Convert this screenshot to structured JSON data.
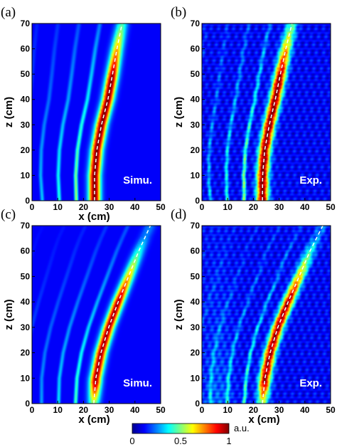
{
  "figure": {
    "panels": [
      {
        "label": "(a)",
        "tag": "Simu.",
        "source": "simulation",
        "order": "low",
        "beam": [
          [
            24.3,
            0
          ],
          [
            24.3,
            10
          ],
          [
            25.2,
            20
          ],
          [
            27,
            30
          ],
          [
            29.5,
            40
          ],
          [
            31.3,
            50
          ],
          [
            33,
            60
          ],
          [
            35,
            70
          ]
        ]
      },
      {
        "label": "(b)",
        "tag": "Exp.",
        "source": "experiment",
        "order": "low",
        "beam": [
          [
            23.5,
            0
          ],
          [
            23.6,
            10
          ],
          [
            24.4,
            20
          ],
          [
            26.2,
            30
          ],
          [
            28.5,
            40
          ],
          [
            30.5,
            50
          ],
          [
            32.6,
            60
          ],
          [
            35,
            70
          ]
        ]
      },
      {
        "label": "(c)",
        "tag": "Simu.",
        "source": "simulation",
        "order": "high",
        "beam": [
          [
            24,
            0
          ],
          [
            24.8,
            10
          ],
          [
            26.8,
            20
          ],
          [
            29.8,
            30
          ],
          [
            33.5,
            40
          ],
          [
            37.5,
            50
          ],
          [
            41.5,
            60
          ],
          [
            46,
            70
          ]
        ]
      },
      {
        "label": "(d)",
        "tag": "Exp.",
        "source": "experiment",
        "order": "high",
        "beam": [
          [
            23.5,
            0
          ],
          [
            24.5,
            10
          ],
          [
            26.5,
            20
          ],
          [
            29.5,
            30
          ],
          [
            33.5,
            40
          ],
          [
            37.8,
            50
          ],
          [
            42,
            60
          ],
          [
            47,
            70
          ]
        ]
      }
    ],
    "colorbar": {
      "ticks": [
        "0",
        "0.5",
        "1"
      ],
      "unit": "a.u.",
      "range": [
        0,
        1
      ]
    },
    "tag_color": "#ffffff",
    "trajectory_color": "#ffffff"
  },
  "chart_data": [
    {
      "type": "heatmap",
      "title": "(a)",
      "annotation": "Simu.",
      "xlabel": "x (cm)",
      "ylabel": "z (cm)",
      "xlim": [
        0,
        50
      ],
      "ylim": [
        0,
        70
      ],
      "xticks": [
        "0",
        "10",
        "20",
        "30",
        "40",
        "50"
      ],
      "yticks": [
        "0",
        "10",
        "20",
        "30",
        "40",
        "50",
        "60",
        "70"
      ],
      "colorbar_range": [
        0,
        1
      ]
    },
    {
      "type": "heatmap",
      "title": "(b)",
      "annotation": "Exp.",
      "xlabel": "",
      "ylabel": "z (cm)",
      "xlim": [
        0,
        50
      ],
      "ylim": [
        0,
        70
      ],
      "xticks": [
        "0",
        "10",
        "20",
        "30",
        "40",
        "50"
      ],
      "yticks": [
        "0",
        "10",
        "20",
        "30",
        "40",
        "50",
        "60",
        "70"
      ],
      "colorbar_range": [
        0,
        1
      ]
    },
    {
      "type": "heatmap",
      "title": "(c)",
      "annotation": "Simu.",
      "xlabel": "x (cm)",
      "ylabel": "z (cm)",
      "xlim": [
        0,
        50
      ],
      "ylim": [
        0,
        70
      ],
      "xticks": [
        "0",
        "10",
        "20",
        "30",
        "40",
        "50"
      ],
      "yticks": [
        "0",
        "10",
        "20",
        "30",
        "40",
        "50",
        "60",
        "70"
      ],
      "colorbar_range": [
        0,
        1
      ]
    },
    {
      "type": "heatmap",
      "title": "(d)",
      "annotation": "Exp.",
      "xlabel": "x (cm)",
      "ylabel": "z (cm)",
      "xlim": [
        0,
        50
      ],
      "ylim": [
        0,
        70
      ],
      "xticks": [
        "0",
        "10",
        "20",
        "30",
        "40",
        "50"
      ],
      "yticks": [
        "0",
        "10",
        "20",
        "30",
        "40",
        "50",
        "60",
        "70"
      ],
      "colorbar_range": [
        0,
        1
      ]
    }
  ]
}
